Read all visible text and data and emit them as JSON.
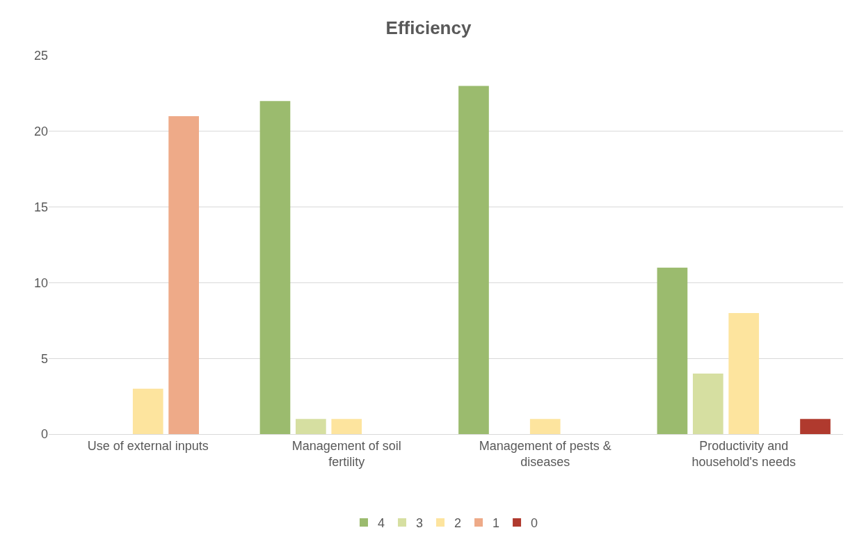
{
  "chart_data": {
    "type": "bar",
    "title": "Efficiency",
    "categories": [
      "Use of external inputs",
      "Management of soil fertility",
      "Management of pests & diseases",
      "Productivity and household's needs"
    ],
    "series": [
      {
        "name": "4",
        "color": "#9bbb6e",
        "values": [
          0,
          22,
          23,
          11
        ]
      },
      {
        "name": "3",
        "color": "#d6dfa1",
        "values": [
          0,
          1,
          0,
          4
        ]
      },
      {
        "name": "2",
        "color": "#fde49e",
        "values": [
          3,
          1,
          1,
          8
        ]
      },
      {
        "name": "1",
        "color": "#eeaa88",
        "values": [
          21,
          0,
          0,
          0
        ]
      },
      {
        "name": "0",
        "color": "#b03a2e",
        "values": [
          0,
          0,
          0,
          1
        ]
      }
    ],
    "ylim": [
      0,
      25
    ],
    "yticks": [
      0,
      5,
      10,
      15,
      20,
      25
    ],
    "grid": "y",
    "legend": "bottom"
  }
}
